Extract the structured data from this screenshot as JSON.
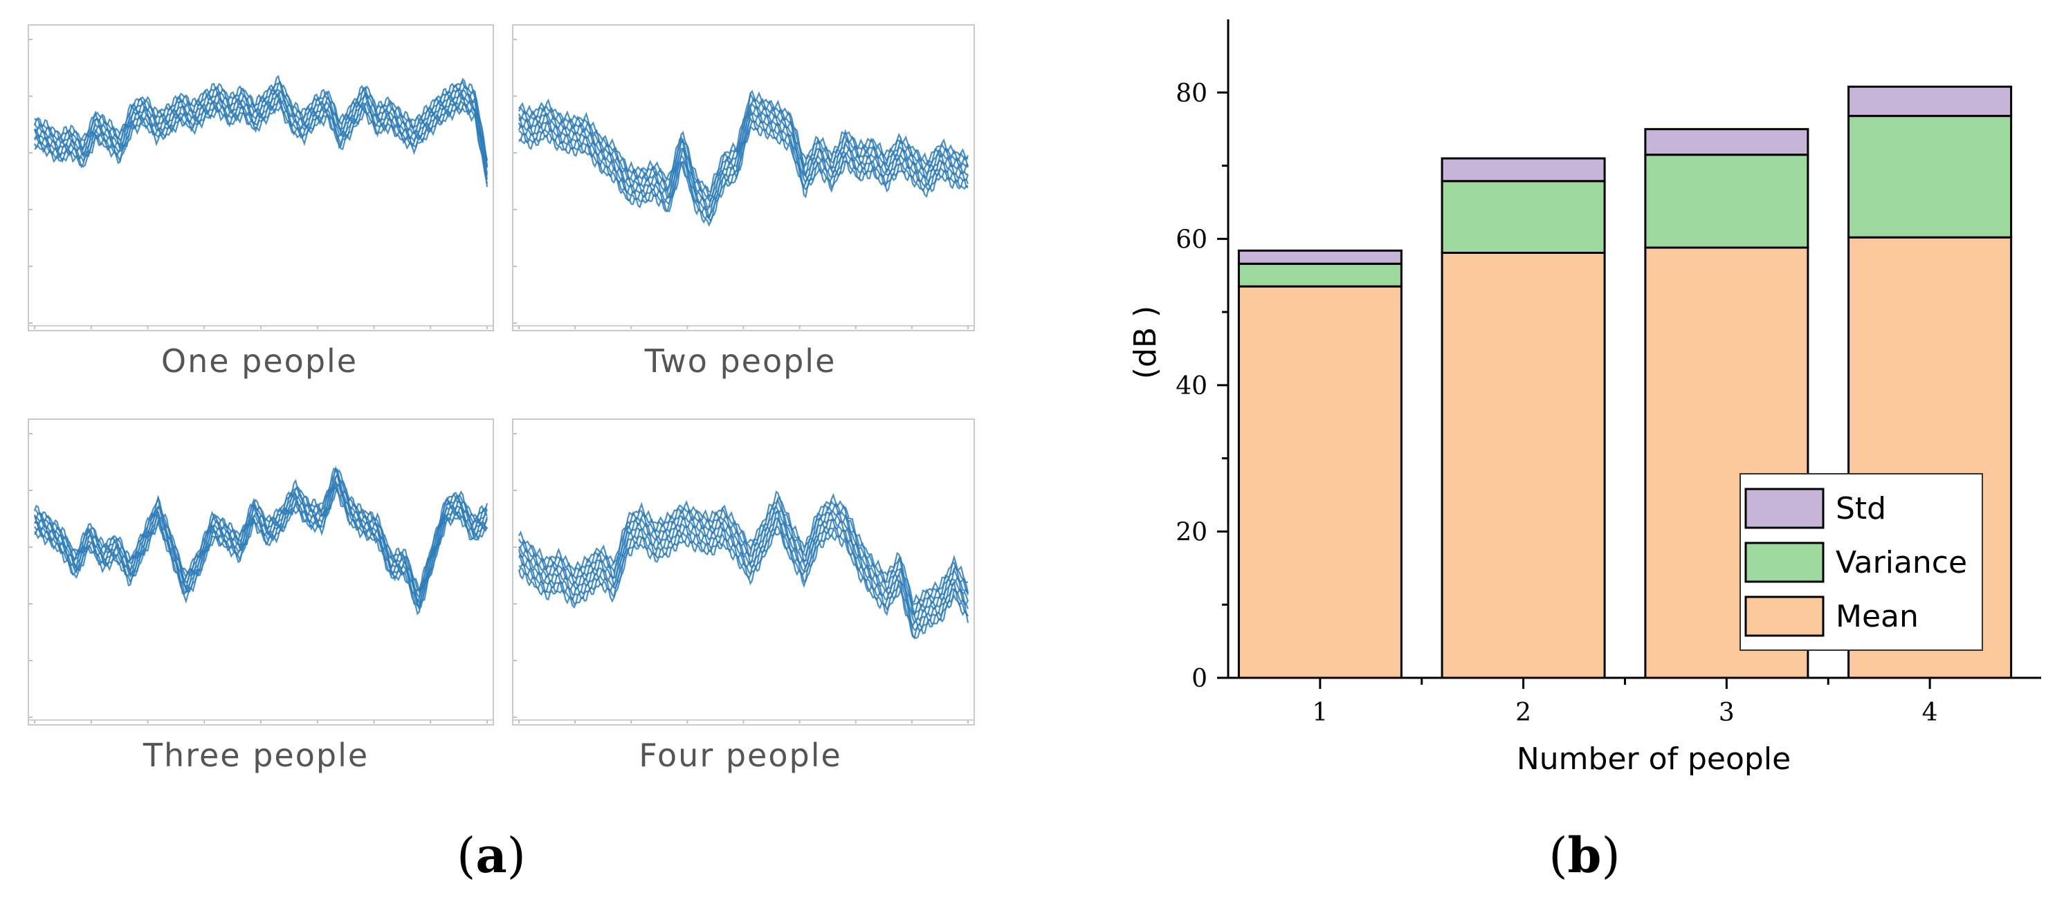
{
  "panel_a": {
    "label_open": "(",
    "label_letter": "a",
    "label_close": ")",
    "line_color": "#2b7bb9",
    "plots": [
      {
        "caption": "One people",
        "profile": [
          0.35,
          0.37,
          0.4,
          0.38,
          0.42,
          0.33,
          0.36,
          0.4,
          0.3,
          0.28,
          0.33,
          0.31,
          0.27,
          0.3,
          0.26,
          0.24,
          0.28,
          0.25,
          0.3,
          0.26,
          0.22,
          0.3,
          0.33,
          0.28,
          0.26,
          0.36,
          0.3,
          0.24,
          0.31,
          0.29,
          0.33,
          0.36,
          0.32,
          0.28,
          0.25,
          0.23,
          0.26,
          0.48
        ],
        "band": 0.09
      },
      {
        "caption": "Two people",
        "profile": [
          0.32,
          0.34,
          0.31,
          0.35,
          0.36,
          0.36,
          0.42,
          0.45,
          0.52,
          0.53,
          0.51,
          0.56,
          0.4,
          0.55,
          0.6,
          0.48,
          0.45,
          0.28,
          0.3,
          0.32,
          0.35,
          0.5,
          0.42,
          0.48,
          0.4,
          0.45,
          0.43,
          0.48,
          0.42,
          0.46,
          0.5,
          0.44,
          0.47,
          0.48
        ],
        "band": 0.11
      },
      {
        "caption": "Three people",
        "profile": [
          0.33,
          0.36,
          0.4,
          0.48,
          0.38,
          0.45,
          0.42,
          0.5,
          0.4,
          0.3,
          0.42,
          0.55,
          0.47,
          0.35,
          0.38,
          0.42,
          0.3,
          0.37,
          0.33,
          0.25,
          0.31,
          0.32,
          0.19,
          0.3,
          0.34,
          0.36,
          0.48,
          0.47,
          0.6,
          0.45,
          0.3,
          0.28,
          0.36,
          0.32
        ],
        "band": 0.08
      },
      {
        "caption": "Four people",
        "profile": [
          0.44,
          0.48,
          0.52,
          0.5,
          0.55,
          0.52,
          0.48,
          0.53,
          0.38,
          0.35,
          0.4,
          0.38,
          0.34,
          0.36,
          0.38,
          0.35,
          0.4,
          0.47,
          0.39,
          0.3,
          0.4,
          0.48,
          0.36,
          0.32,
          0.35,
          0.45,
          0.52,
          0.57,
          0.5,
          0.66,
          0.62,
          0.6,
          0.52,
          0.6
        ],
        "band": 0.12
      }
    ]
  },
  "panel_b": {
    "label_open": "(",
    "label_letter": "b",
    "label_close": ")"
  },
  "chart_data": {
    "type": "bar",
    "stacked": true,
    "categories": [
      "1",
      "2",
      "3",
      "4"
    ],
    "series": [
      {
        "name": "Mean",
        "values": [
          53.5,
          58.1,
          58.8,
          60.2
        ],
        "color": "#fbc89b"
      },
      {
        "name": "Variance",
        "values": [
          3.1,
          9.8,
          12.7,
          16.6
        ],
        "color": "#9dd89c"
      },
      {
        "name": "Std",
        "values": [
          1.8,
          3.1,
          3.5,
          4.0
        ],
        "color": "#c6b4d9"
      }
    ],
    "xlabel": "Number of people",
    "ylabel": "(dB )",
    "ylim": [
      0,
      90
    ],
    "yticks": [
      "0",
      "20",
      "40",
      "60",
      "80"
    ],
    "legend": {
      "position": "bottom-right",
      "entries": [
        "Std",
        "Variance",
        "Mean"
      ]
    },
    "grid": false
  }
}
